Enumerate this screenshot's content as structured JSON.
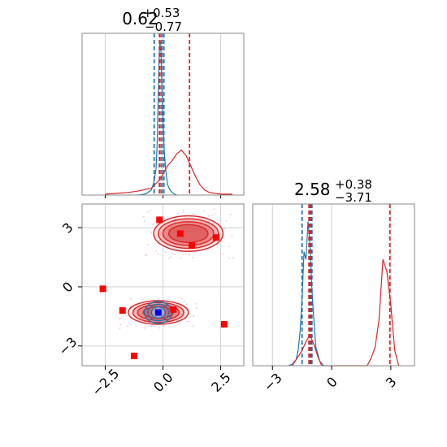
{
  "chart_data": [
    {
      "type": "histogram",
      "panel": "marginal-param-1",
      "title_main": "0.62",
      "title_sup": "+0.53",
      "title_sub": "−0.77",
      "xlim": [
        -3.5,
        3.5
      ],
      "grid": true,
      "series": [
        {
          "color": "#1f77b4",
          "bin_centers": [
            -1.1,
            -0.9,
            -0.7,
            -0.5,
            -0.4,
            -0.3,
            -0.25,
            -0.2,
            -0.15,
            -0.1,
            -0.05,
            0.0,
            0.05,
            0.1,
            0.15,
            0.2,
            0.3,
            0.4,
            0.5,
            0.6
          ],
          "counts": [
            0,
            0.5,
            2,
            6,
            14,
            30,
            60,
            120,
            175,
            178,
            130,
            85,
            55,
            35,
            22,
            12,
            6,
            3,
            1,
            0
          ],
          "quantile_lines": [
            -0.38,
            -0.05,
            0.04
          ]
        },
        {
          "color": "#d62728",
          "bin_centers": [
            -2.5,
            -2.0,
            -1.5,
            -1.0,
            -0.5,
            -0.2,
            0.0,
            0.2,
            0.4,
            0.6,
            0.8,
            1.0,
            1.2,
            1.4,
            1.6,
            1.8,
            2.0,
            2.5,
            3.0
          ],
          "counts": [
            1,
            2,
            3,
            5,
            8,
            16,
            24,
            34,
            40,
            48,
            52,
            46,
            34,
            22,
            12,
            6,
            3,
            1,
            1
          ],
          "quantile_lines": [
            -0.15,
            -0.13,
            1.15
          ]
        }
      ]
    },
    {
      "type": "contour",
      "panel": "joint-2d",
      "xlim": [
        -3.5,
        3.5
      ],
      "ylim": [
        -4,
        4.2
      ],
      "grid": true,
      "x_ticks": [
        -2.5,
        0.0,
        2.5
      ],
      "x_tick_labels": [
        "−2.5",
        "0.0",
        "2.5"
      ],
      "y_ticks": [
        -3,
        0,
        3
      ],
      "y_tick_labels": [
        "−3",
        "0",
        "3"
      ],
      "red_modes": [
        {
          "cx": 1.1,
          "cy": 2.7,
          "rx": [
            1.5,
            1.3,
            1.1,
            0.85
          ],
          "ry": [
            0.9,
            0.75,
            0.6,
            0.45
          ]
        },
        {
          "cx": -0.2,
          "cy": -1.3,
          "rx": [
            1.3,
            1.1,
            0.9,
            0.65
          ],
          "ry": [
            0.6,
            0.5,
            0.4,
            0.3
          ]
        }
      ],
      "blue_mode": {
        "cx": -0.2,
        "cy": -1.3,
        "rx": [
          0.6,
          0.45,
          0.3
        ],
        "ry": [
          0.55,
          0.42,
          0.28
        ]
      },
      "red_markers": [
        {
          "x": -0.15,
          "y": 3.4
        },
        {
          "x": 0.75,
          "y": 2.7
        },
        {
          "x": 1.25,
          "y": 2.1
        },
        {
          "x": 2.3,
          "y": 2.5
        },
        {
          "x": -2.6,
          "y": -0.1
        },
        {
          "x": -1.75,
          "y": -1.2
        },
        {
          "x": 0.45,
          "y": -1.15
        },
        {
          "x": 2.65,
          "y": -1.9
        },
        {
          "x": -1.25,
          "y": -3.5
        }
      ],
      "blue_markers": [
        {
          "x": -0.2,
          "y": -1.3
        }
      ]
    },
    {
      "type": "histogram",
      "panel": "marginal-param-2",
      "title_main": "2.58",
      "title_sup": "+0.38",
      "title_sub": "−3.71",
      "xlim": [
        -4,
        4.2
      ],
      "grid": true,
      "x_ticks": [
        -3,
        0,
        3
      ],
      "x_tick_labels": [
        "−3",
        "0",
        "3"
      ],
      "series": [
        {
          "color": "#1f77b4",
          "bin_centers": [
            -2.2,
            -2.0,
            -1.8,
            -1.7,
            -1.6,
            -1.5,
            -1.4,
            -1.3,
            -1.2,
            -1.1,
            -1.0,
            -0.9,
            -0.8,
            -0.6,
            -0.4
          ],
          "counts": [
            0,
            1,
            4,
            10,
            22,
            45,
            75,
            70,
            95,
            80,
            50,
            30,
            12,
            3,
            0
          ],
          "quantile_lines": [
            -1.5,
            -1.1,
            -1.0
          ]
        },
        {
          "color": "#d62728",
          "bin_centers": [
            -2.0,
            -1.7,
            -1.5,
            -1.3,
            -1.1,
            -0.9,
            -0.7,
            -0.5,
            1.8,
            2.0,
            2.2,
            2.4,
            2.6,
            2.8,
            3.0,
            3.2,
            3.4
          ],
          "counts": [
            0,
            6,
            10,
            16,
            20,
            14,
            6,
            0,
            0,
            5,
            12,
            30,
            70,
            62,
            40,
            10,
            0
          ],
          "quantile_lines": [
            -1.15,
            -1.05,
            2.95
          ]
        }
      ]
    }
  ]
}
